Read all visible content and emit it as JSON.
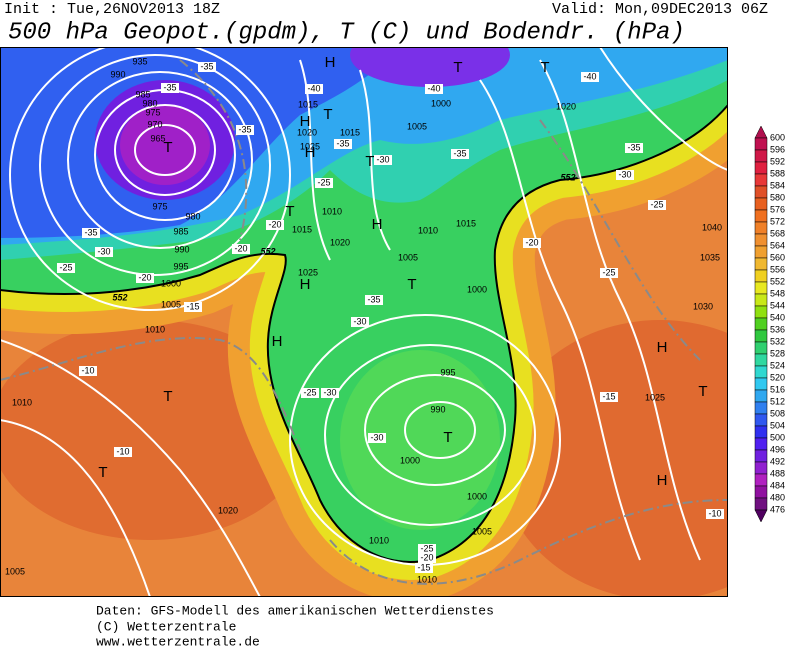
{
  "header": {
    "init": "Init : Tue,26NOV2013 18Z",
    "valid": "Valid: Mon,09DEC2013 06Z",
    "title": "500 hPa Geopot.(gpdm), T (C) und Bodendr. (hPa)"
  },
  "map_labels": {
    "pressure_centers": [
      "H",
      "T",
      "T",
      "H",
      "T",
      "T",
      "H",
      "T",
      "T",
      "H",
      "H",
      "T",
      "H",
      "H",
      "T",
      "T",
      "T",
      "T",
      "H"
    ],
    "isobars": [
      "935",
      "990",
      "985",
      "980",
      "975",
      "970",
      "965",
      "975",
      "980",
      "985",
      "990",
      "995",
      "1000",
      "1005",
      "1010",
      "1010",
      "1015",
      "1020",
      "1025",
      "1015",
      "1010",
      "1015",
      "1020",
      "1025",
      "1005",
      "1010",
      "1015",
      "1000",
      "1005",
      "1000",
      "1020",
      "995",
      "990",
      "1000",
      "1000",
      "1005",
      "1010",
      "1010",
      "1020",
      "1005",
      "1025",
      "1030",
      "1035",
      "1040"
    ],
    "temperatures": [
      "-35",
      "-35",
      "-40",
      "-40",
      "-40",
      "-35",
      "-35",
      "-35",
      "-30",
      "-30",
      "-25",
      "-25",
      "-25",
      "-20",
      "-20",
      "-20",
      "-35",
      "-30",
      "-25",
      "-30",
      "-30",
      "-25",
      "-20",
      "-15",
      "-15",
      "-10",
      "-10",
      "-10",
      "-30",
      "-25",
      "-20",
      "-15",
      "-35",
      "-35"
    ],
    "contour_552": [
      "552",
      "552",
      "552"
    ]
  },
  "legend": {
    "labels": [
      600,
      596,
      592,
      588,
      584,
      580,
      576,
      572,
      568,
      564,
      560,
      556,
      552,
      548,
      544,
      540,
      536,
      532,
      528,
      524,
      520,
      516,
      512,
      508,
      504,
      500,
      496,
      492,
      488,
      484,
      480,
      476
    ],
    "colors": [
      "#b0104e",
      "#c01050",
      "#d01848",
      "#e02040",
      "#e83838",
      "#e05028",
      "#e86020",
      "#f07020",
      "#f08028",
      "#f09030",
      "#f0a030",
      "#f0b830",
      "#f0d020",
      "#e8e820",
      "#c8e818",
      "#90e010",
      "#50d020",
      "#30c840",
      "#30d070",
      "#30d8a0",
      "#30d8d0",
      "#30c8f0",
      "#30a8f0",
      "#3080f0",
      "#3058f0",
      "#3030f0",
      "#5020f0",
      "#7020e0",
      "#9020d0",
      "#b020c0",
      "#9010a0",
      "#701080",
      "#500060"
    ]
  },
  "footer": [
    "Daten: GFS-Modell des amerikanischen Wetterdienstes",
    "(C) Wetterzentrale",
    "www.wetterzentrale.de"
  ]
}
